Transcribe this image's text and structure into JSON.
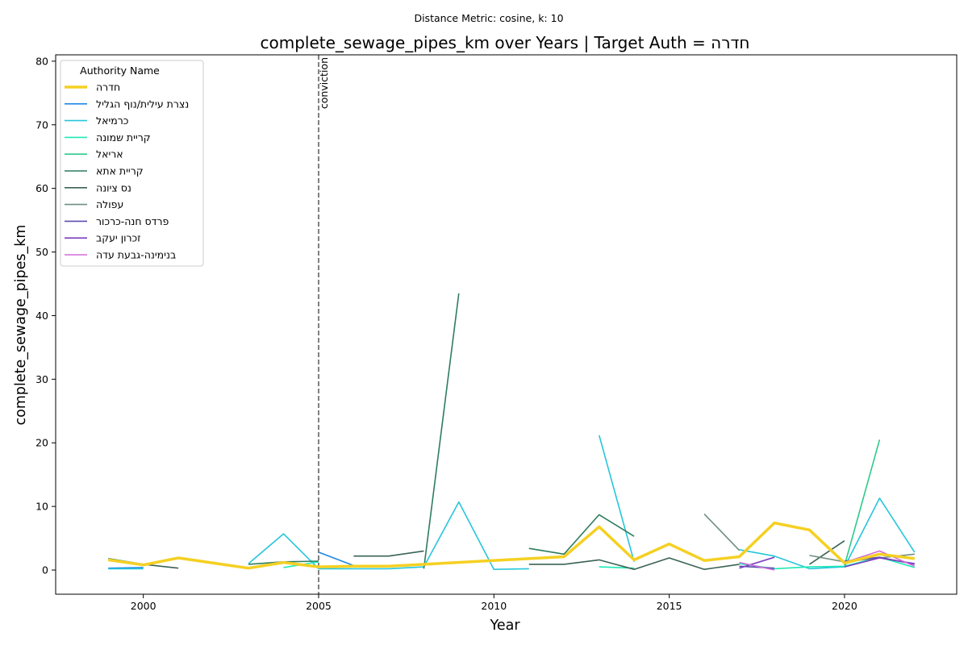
{
  "suptitle": "Distance Metric: cosine, k: 10",
  "chart_data": {
    "type": "line",
    "title": "complete_sewage_pipes_km over Years | Target Auth = חדרה",
    "xlabel": "Year",
    "ylabel": "complete_sewage_pipes_km",
    "xlim": [
      1997.5,
      2023.2
    ],
    "ylim": [
      -3.8,
      81
    ],
    "xticks": [
      2000,
      2005,
      2010,
      2015,
      2020
    ],
    "yticks": [
      0,
      10,
      20,
      30,
      40,
      50,
      60,
      70,
      80
    ],
    "grid": false,
    "legend_title": "Authority Name",
    "legend_position": "upper-left",
    "vline": {
      "x": 2005,
      "label": "conviction",
      "color": "#808080"
    },
    "series": [
      {
        "name": "חדרה",
        "color": "#F5D022",
        "emphasis": true,
        "points": [
          [
            1999,
            1.6
          ],
          [
            2000,
            0.8
          ],
          [
            2001,
            1.9
          ],
          [
            2003,
            0.3
          ],
          [
            2004,
            1.2
          ],
          [
            2005,
            0.5
          ],
          [
            2006,
            0.6
          ],
          [
            2007,
            0.6
          ],
          [
            2012,
            2.1
          ],
          [
            2013,
            6.8
          ],
          [
            2014,
            1.6
          ],
          [
            2015,
            4.1
          ],
          [
            2016,
            1.5
          ],
          [
            2017,
            2.1
          ],
          [
            2018,
            7.4
          ],
          [
            2019,
            6.3
          ],
          [
            2020,
            1.1
          ],
          [
            2021,
            2.5
          ],
          [
            2022,
            1.8
          ]
        ]
      },
      {
        "name": "נצרת עילית/נוף הגליל",
        "color": "#1E88E5",
        "points": [
          [
            1999,
            0.3
          ],
          [
            2000,
            0.4
          ],
          null,
          [
            2005,
            2.8
          ],
          [
            2006,
            0.7
          ]
        ]
      },
      {
        "name": "כרמיאל",
        "color": "#26C6DA",
        "points": [
          [
            1999,
            0.2
          ],
          [
            2000,
            0.2
          ],
          null,
          [
            2003,
            1.0
          ],
          [
            2004,
            5.7
          ],
          [
            2005,
            0.2
          ],
          [
            2006,
            0.2
          ],
          [
            2007,
            0.2
          ],
          [
            2008,
            0.5
          ],
          [
            2009,
            10.7
          ],
          [
            2010,
            0.1
          ],
          [
            2011,
            0.2
          ],
          null,
          [
            2013,
            21.2
          ],
          [
            2014,
            1.3
          ],
          null,
          [
            2017,
            3.2
          ],
          [
            2018,
            2.2
          ],
          [
            2019,
            0.2
          ],
          [
            2020,
            0.5
          ],
          [
            2021,
            11.3
          ],
          [
            2022,
            2.8
          ]
        ]
      },
      {
        "name": "קריית שמונה",
        "color": "#1DE9B6",
        "points": [
          [
            2004,
            0.4
          ],
          [
            2005,
            1.3
          ],
          null,
          [
            2013,
            0.5
          ],
          [
            2014,
            0.3
          ],
          null,
          [
            2017,
            1.0
          ],
          [
            2018,
            0.2
          ],
          [
            2019,
            0.5
          ],
          [
            2020,
            0.6
          ],
          [
            2021,
            2.0
          ],
          [
            2022,
            0.4
          ]
        ]
      },
      {
        "name": "אריאל",
        "color": "#2EC98C",
        "points": [
          [
            2020,
            0.7
          ],
          [
            2021,
            20.5
          ]
        ]
      },
      {
        "name": "קריית אתא",
        "color": "#2E7D5E",
        "points": [
          [
            1999,
            1.8
          ],
          [
            2000,
            0.9
          ],
          null,
          [
            2003,
            0.9
          ],
          [
            2004,
            1.3
          ],
          [
            2005,
            1.4
          ],
          null,
          [
            2008,
            0.2
          ],
          [
            2009,
            43.5
          ],
          null,
          [
            2011,
            3.4
          ],
          [
            2012,
            2.5
          ],
          [
            2013,
            8.7
          ],
          [
            2014,
            5.3
          ]
        ]
      },
      {
        "name": "נס ציונה",
        "color": "#3A6354",
        "points": [
          [
            2000,
            0.9
          ],
          [
            2001,
            0.3
          ],
          null,
          [
            2006,
            2.2
          ],
          [
            2007,
            2.2
          ],
          [
            2008,
            3.0
          ],
          null,
          [
            2011,
            0.9
          ],
          [
            2012,
            0.9
          ],
          [
            2013,
            1.6
          ],
          [
            2014,
            0.1
          ],
          [
            2015,
            1.9
          ],
          [
            2016,
            0.1
          ],
          [
            2017,
            0.9
          ],
          null,
          [
            2019,
            0.9
          ],
          [
            2020,
            4.6
          ]
        ]
      },
      {
        "name": "עפולה",
        "color": "#6E8F80",
        "points": [
          [
            2016,
            8.8
          ],
          [
            2017,
            3.1
          ],
          null,
          [
            2019,
            2.3
          ],
          [
            2020,
            1.3
          ],
          [
            2021,
            1.9
          ],
          [
            2022,
            2.5
          ]
        ]
      },
      {
        "name": "פרדס חנה-כרכור",
        "color": "#5C4EB0",
        "points": [
          [
            2017,
            0.6
          ],
          [
            2018,
            0.3
          ],
          null,
          [
            2020,
            1.4
          ],
          [
            2021,
            2.0
          ],
          [
            2022,
            0.9
          ]
        ]
      },
      {
        "name": "זכרון יעקב",
        "color": "#7E3FC2",
        "points": [
          [
            2017,
            0.3
          ],
          [
            2018,
            2.0
          ],
          null,
          [
            2020,
            0.5
          ],
          [
            2021,
            1.9
          ],
          [
            2022,
            1.0
          ]
        ]
      },
      {
        "name": "בנימינה-גבעת עדה",
        "color": "#D36BD8",
        "points": [
          [
            2017,
            1.2
          ],
          [
            2018,
            0.0
          ],
          null,
          [
            2020,
            1.2
          ],
          [
            2021,
            3.0
          ],
          [
            2022,
            0.6
          ]
        ]
      }
    ]
  }
}
